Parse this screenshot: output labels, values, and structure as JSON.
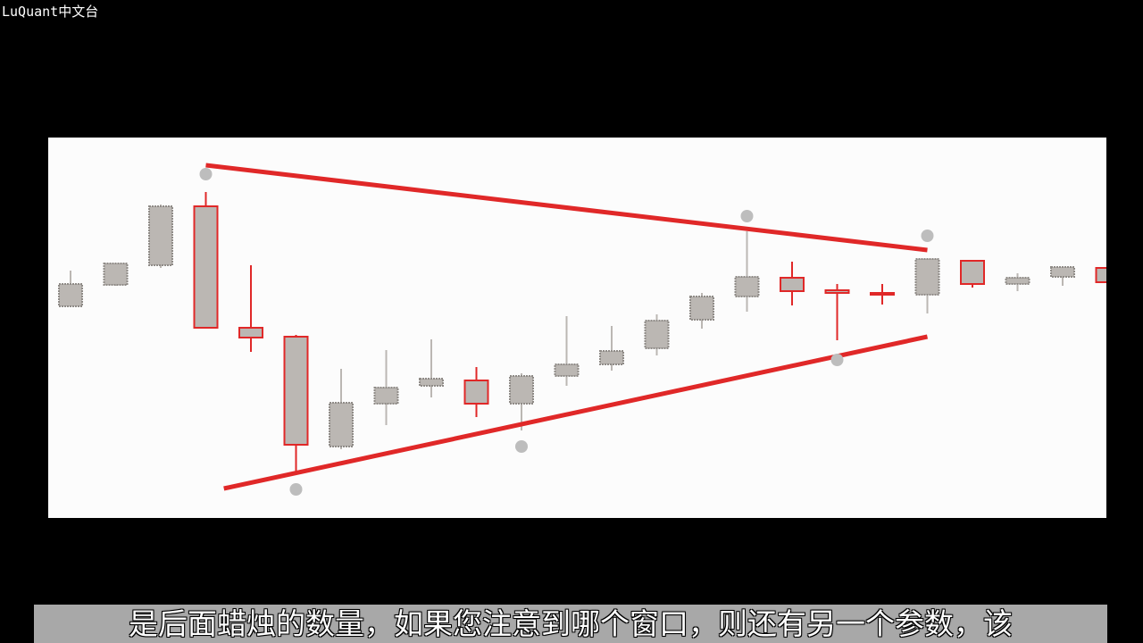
{
  "watermark": "LuQuant中文台",
  "subtitle": "是后面蜡烛的数量，如果您注意到哪个窗口，则还有另一个参数，该",
  "colors": {
    "up": "#bbb7b3",
    "down": "#e02828",
    "wick_up": "#bbb7b3",
    "trendline": "#e02828",
    "pivot": "#bdbdbd",
    "panel_bg": "#fcfcfc",
    "page_bg": "#000000"
  },
  "chart_data": {
    "type": "candlestick",
    "title": "",
    "xlabel": "",
    "ylabel": "",
    "ylim": [
      0,
      426
    ],
    "candles": [
      {
        "i": 0,
        "o": 237,
        "c": 262,
        "h": 277,
        "l": 236,
        "color": "up"
      },
      {
        "i": 1,
        "o": 261,
        "c": 285,
        "h": 286,
        "l": 260,
        "color": "up"
      },
      {
        "i": 2,
        "o": 283,
        "c": 349,
        "h": 351,
        "l": 280,
        "color": "up"
      },
      {
        "i": 3,
        "o": 349,
        "c": 213,
        "h": 365,
        "l": 212,
        "color": "down"
      },
      {
        "i": 4,
        "o": 213,
        "c": 202,
        "h": 283,
        "l": 186,
        "color": "down"
      },
      {
        "i": 5,
        "o": 203,
        "c": 82,
        "h": 205,
        "l": 52,
        "color": "down"
      },
      {
        "i": 6,
        "o": 80,
        "c": 129,
        "h": 167,
        "l": 77,
        "color": "up"
      },
      {
        "i": 7,
        "o": 128,
        "c": 146,
        "h": 188,
        "l": 104,
        "color": "up"
      },
      {
        "i": 8,
        "o": 148,
        "c": 156,
        "h": 200,
        "l": 135,
        "color": "up"
      },
      {
        "i": 9,
        "o": 154,
        "c": 128,
        "h": 169,
        "l": 113,
        "color": "down"
      },
      {
        "i": 10,
        "o": 128,
        "c": 159,
        "h": 162,
        "l": 98,
        "color": "up"
      },
      {
        "i": 11,
        "o": 159,
        "c": 172,
        "h": 226,
        "l": 148,
        "color": "up"
      },
      {
        "i": 12,
        "o": 172,
        "c": 187,
        "h": 215,
        "l": 165,
        "color": "up"
      },
      {
        "i": 13,
        "o": 190,
        "c": 221,
        "h": 228,
        "l": 182,
        "color": "up"
      },
      {
        "i": 14,
        "o": 222,
        "c": 248,
        "h": 252,
        "l": 212,
        "color": "up"
      },
      {
        "i": 15,
        "o": 248,
        "c": 270,
        "h": 321,
        "l": 231,
        "color": "up"
      },
      {
        "i": 16,
        "o": 269,
        "c": 254,
        "h": 287,
        "l": 238,
        "color": "down"
      },
      {
        "i": 17,
        "o": 255,
        "c": 252,
        "h": 262,
        "l": 199,
        "color": "down"
      },
      {
        "i": 18,
        "o": 252,
        "c": 251,
        "h": 262,
        "l": 239,
        "color": "down"
      },
      {
        "i": 19,
        "o": 250,
        "c": 290,
        "h": 291,
        "l": 229,
        "color": "up"
      },
      {
        "i": 20,
        "o": 288,
        "c": 262,
        "h": 289,
        "l": 258,
        "color": "down"
      },
      {
        "i": 21,
        "o": 262,
        "c": 269,
        "h": 274,
        "l": 254,
        "color": "up"
      },
      {
        "i": 22,
        "o": 270,
        "c": 281,
        "h": 282,
        "l": 260,
        "color": "up"
      },
      {
        "i": 23,
        "o": 280,
        "c": 264,
        "h": 281,
        "l": 263,
        "color": "down"
      }
    ],
    "pivots": [
      {
        "i": 3,
        "y": 385,
        "kind": "high"
      },
      {
        "i": 5,
        "y": 32,
        "kind": "low"
      },
      {
        "i": 10,
        "y": 80,
        "kind": "low"
      },
      {
        "i": 15,
        "y": 338,
        "kind": "high"
      },
      {
        "i": 17,
        "y": 177,
        "kind": "low"
      },
      {
        "i": 19,
        "y": 316,
        "kind": "high"
      }
    ],
    "trendlines": [
      {
        "from_i": 3,
        "from_y": 395,
        "to_i": 19,
        "to_y": 300,
        "name": ""
      },
      {
        "from_i": 3.4,
        "from_y": 33,
        "to_i": 19,
        "to_y": 203,
        "name": ""
      }
    ]
  }
}
